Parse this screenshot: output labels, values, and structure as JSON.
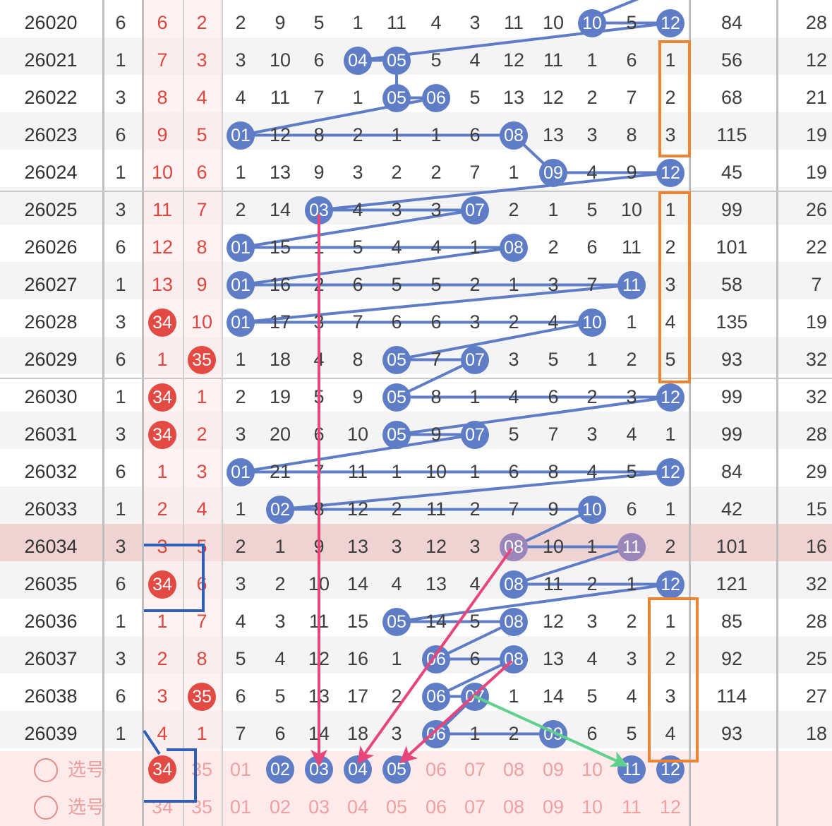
{
  "rows": [
    {
      "issue": "26020",
      "sum": "6",
      "r1": "6",
      "r2": "2",
      "digits": [
        "2",
        "9",
        "5",
        "1",
        "11",
        "4",
        "3",
        "11",
        "10",
        "10",
        "5",
        "12"
      ],
      "total": "84",
      "last": "28",
      "balls": [
        9,
        11
      ]
    },
    {
      "issue": "26021",
      "sum": "1",
      "r1": "7",
      "r2": "3",
      "digits": [
        "3",
        "10",
        "6",
        "04",
        "05",
        "5",
        "4",
        "12",
        "11",
        "1",
        "6",
        "1"
      ],
      "total": "56",
      "last": "12",
      "balls": [
        3,
        4
      ]
    },
    {
      "issue": "26022",
      "sum": "3",
      "r1": "8",
      "r2": "4",
      "digits": [
        "4",
        "11",
        "7",
        "1",
        "05",
        "06",
        "5",
        "13",
        "12",
        "2",
        "7",
        "2"
      ],
      "total": "68",
      "last": "21",
      "balls": [
        4,
        5
      ]
    },
    {
      "issue": "26023",
      "sum": "6",
      "r1": "9",
      "r2": "5",
      "digits": [
        "01",
        "12",
        "8",
        "2",
        "1",
        "1",
        "6",
        "08",
        "13",
        "3",
        "8",
        "3"
      ],
      "total": "115",
      "last": "19",
      "balls": [
        0,
        7
      ]
    },
    {
      "issue": "26024",
      "sum": "1",
      "r1": "10",
      "r2": "6",
      "digits": [
        "1",
        "13",
        "9",
        "3",
        "2",
        "2",
        "7",
        "1",
        "09",
        "4",
        "9",
        "12"
      ],
      "total": "45",
      "last": "19",
      "balls": [
        8,
        11
      ]
    },
    {
      "issue": "26025",
      "sum": "3",
      "r1": "11",
      "r2": "7",
      "digits": [
        "2",
        "14",
        "03",
        "4",
        "3",
        "3",
        "07",
        "2",
        "1",
        "5",
        "10",
        "1"
      ],
      "total": "99",
      "last": "26",
      "balls": [
        2,
        6
      ]
    },
    {
      "issue": "26026",
      "sum": "6",
      "r1": "12",
      "r2": "8",
      "digits": [
        "01",
        "15",
        "1",
        "5",
        "4",
        "4",
        "1",
        "08",
        "2",
        "6",
        "11",
        "2"
      ],
      "total": "101",
      "last": "22",
      "balls": [
        0,
        7
      ]
    },
    {
      "issue": "26027",
      "sum": "1",
      "r1": "13",
      "r2": "9",
      "digits": [
        "01",
        "16",
        "2",
        "6",
        "5",
        "5",
        "2",
        "1",
        "3",
        "7",
        "11",
        "3"
      ],
      "total": "58",
      "last": "7",
      "balls": [
        0,
        10
      ]
    },
    {
      "issue": "26028",
      "sum": "3",
      "r1": "34",
      "r2": "10",
      "digits": [
        "01",
        "17",
        "3",
        "7",
        "6",
        "6",
        "3",
        "2",
        "4",
        "10",
        "1",
        "4"
      ],
      "total": "135",
      "last": "19",
      "balls": [
        0,
        9
      ],
      "r1ball": true
    },
    {
      "issue": "26029",
      "sum": "6",
      "r1": "1",
      "r2": "35",
      "digits": [
        "1",
        "18",
        "4",
        "8",
        "05",
        "7",
        "07",
        "3",
        "5",
        "1",
        "2",
        "5"
      ],
      "total": "93",
      "last": "32",
      "balls": [
        4,
        6
      ],
      "r2ball": true
    },
    {
      "issue": "26030",
      "sum": "1",
      "r1": "34",
      "r2": "1",
      "digits": [
        "2",
        "19",
        "5",
        "9",
        "05",
        "8",
        "1",
        "4",
        "6",
        "2",
        "3",
        "12"
      ],
      "total": "99",
      "last": "32",
      "balls": [
        4,
        11
      ],
      "r1ball": true
    },
    {
      "issue": "26031",
      "sum": "3",
      "r1": "34",
      "r2": "2",
      "digits": [
        "3",
        "20",
        "6",
        "10",
        "05",
        "9",
        "07",
        "5",
        "7",
        "3",
        "4",
        "1"
      ],
      "total": "99",
      "last": "28",
      "balls": [
        4,
        6
      ],
      "r1ball": true
    },
    {
      "issue": "26032",
      "sum": "6",
      "r1": "1",
      "r2": "3",
      "digits": [
        "01",
        "21",
        "7",
        "11",
        "1",
        "10",
        "1",
        "6",
        "8",
        "4",
        "5",
        "12"
      ],
      "total": "84",
      "last": "29",
      "balls": [
        0,
        11
      ]
    },
    {
      "issue": "26033",
      "sum": "1",
      "r1": "2",
      "r2": "4",
      "digits": [
        "1",
        "02",
        "8",
        "12",
        "2",
        "11",
        "2",
        "7",
        "9",
        "10",
        "6",
        "1"
      ],
      "total": "42",
      "last": "15",
      "balls": [
        1,
        9
      ]
    },
    {
      "issue": "26034",
      "sum": "3",
      "r1": "3",
      "r2": "5",
      "digits": [
        "2",
        "1",
        "9",
        "13",
        "3",
        "12",
        "3",
        "08",
        "10",
        "1",
        "11",
        "2"
      ],
      "total": "101",
      "last": "16",
      "balls": [
        7,
        10
      ],
      "highlight": true
    },
    {
      "issue": "26035",
      "sum": "6",
      "r1": "34",
      "r2": "6",
      "digits": [
        "3",
        "2",
        "10",
        "14",
        "4",
        "13",
        "4",
        "08",
        "11",
        "2",
        "1",
        "12"
      ],
      "total": "121",
      "last": "32",
      "balls": [
        7,
        11
      ],
      "r1ball": true
    },
    {
      "issue": "26036",
      "sum": "1",
      "r1": "1",
      "r2": "7",
      "digits": [
        "4",
        "3",
        "11",
        "15",
        "05",
        "14",
        "5",
        "08",
        "12",
        "3",
        "2",
        "1"
      ],
      "total": "85",
      "last": "28",
      "balls": [
        4,
        7
      ]
    },
    {
      "issue": "26037",
      "sum": "3",
      "r1": "2",
      "r2": "8",
      "digits": [
        "5",
        "4",
        "12",
        "16",
        "1",
        "06",
        "6",
        "08",
        "13",
        "4",
        "3",
        "2"
      ],
      "total": "92",
      "last": "25",
      "balls": [
        5,
        7
      ]
    },
    {
      "issue": "26038",
      "sum": "6",
      "r1": "3",
      "r2": "35",
      "digits": [
        "6",
        "5",
        "13",
        "17",
        "2",
        "06",
        "07",
        "1",
        "14",
        "5",
        "4",
        "3"
      ],
      "total": "114",
      "last": "27",
      "balls": [
        5,
        6
      ],
      "r2ball": true
    },
    {
      "issue": "26039",
      "sum": "1",
      "r1": "4",
      "r2": "1",
      "digits": [
        "7",
        "6",
        "14",
        "18",
        "3",
        "06",
        "1",
        "2",
        "09",
        "6",
        "5",
        "4"
      ],
      "total": "93",
      "last": "18",
      "balls": [
        5,
        8
      ]
    }
  ],
  "pick_rows": [
    {
      "label": "选号",
      "r1": "34",
      "r2": "35",
      "nums": [
        "01",
        "02",
        "03",
        "04",
        "05",
        "06",
        "07",
        "08",
        "09",
        "10",
        "11",
        "12"
      ],
      "r1ball": true,
      "balls": [
        1,
        2,
        3,
        4,
        10,
        11
      ]
    },
    {
      "label": "选号",
      "r1": "34",
      "r2": "35",
      "nums": [
        "01",
        "02",
        "03",
        "04",
        "05",
        "06",
        "07",
        "08",
        "09",
        "10",
        "11",
        "12"
      ],
      "r1ball": false,
      "balls": []
    }
  ],
  "colors": {
    "blue_ball": "#5e7dc6",
    "red_ball": "#e34a44",
    "link_line": "#5e7dc6",
    "pink_arrow": "#e8457a",
    "green_arrow": "#5fd08e",
    "orange_box": "#ec8433",
    "blue_box": "#2f5fb8",
    "highlight_row": "#efd3d3"
  },
  "icons": {
    "radio": "radio-circle-icon"
  }
}
